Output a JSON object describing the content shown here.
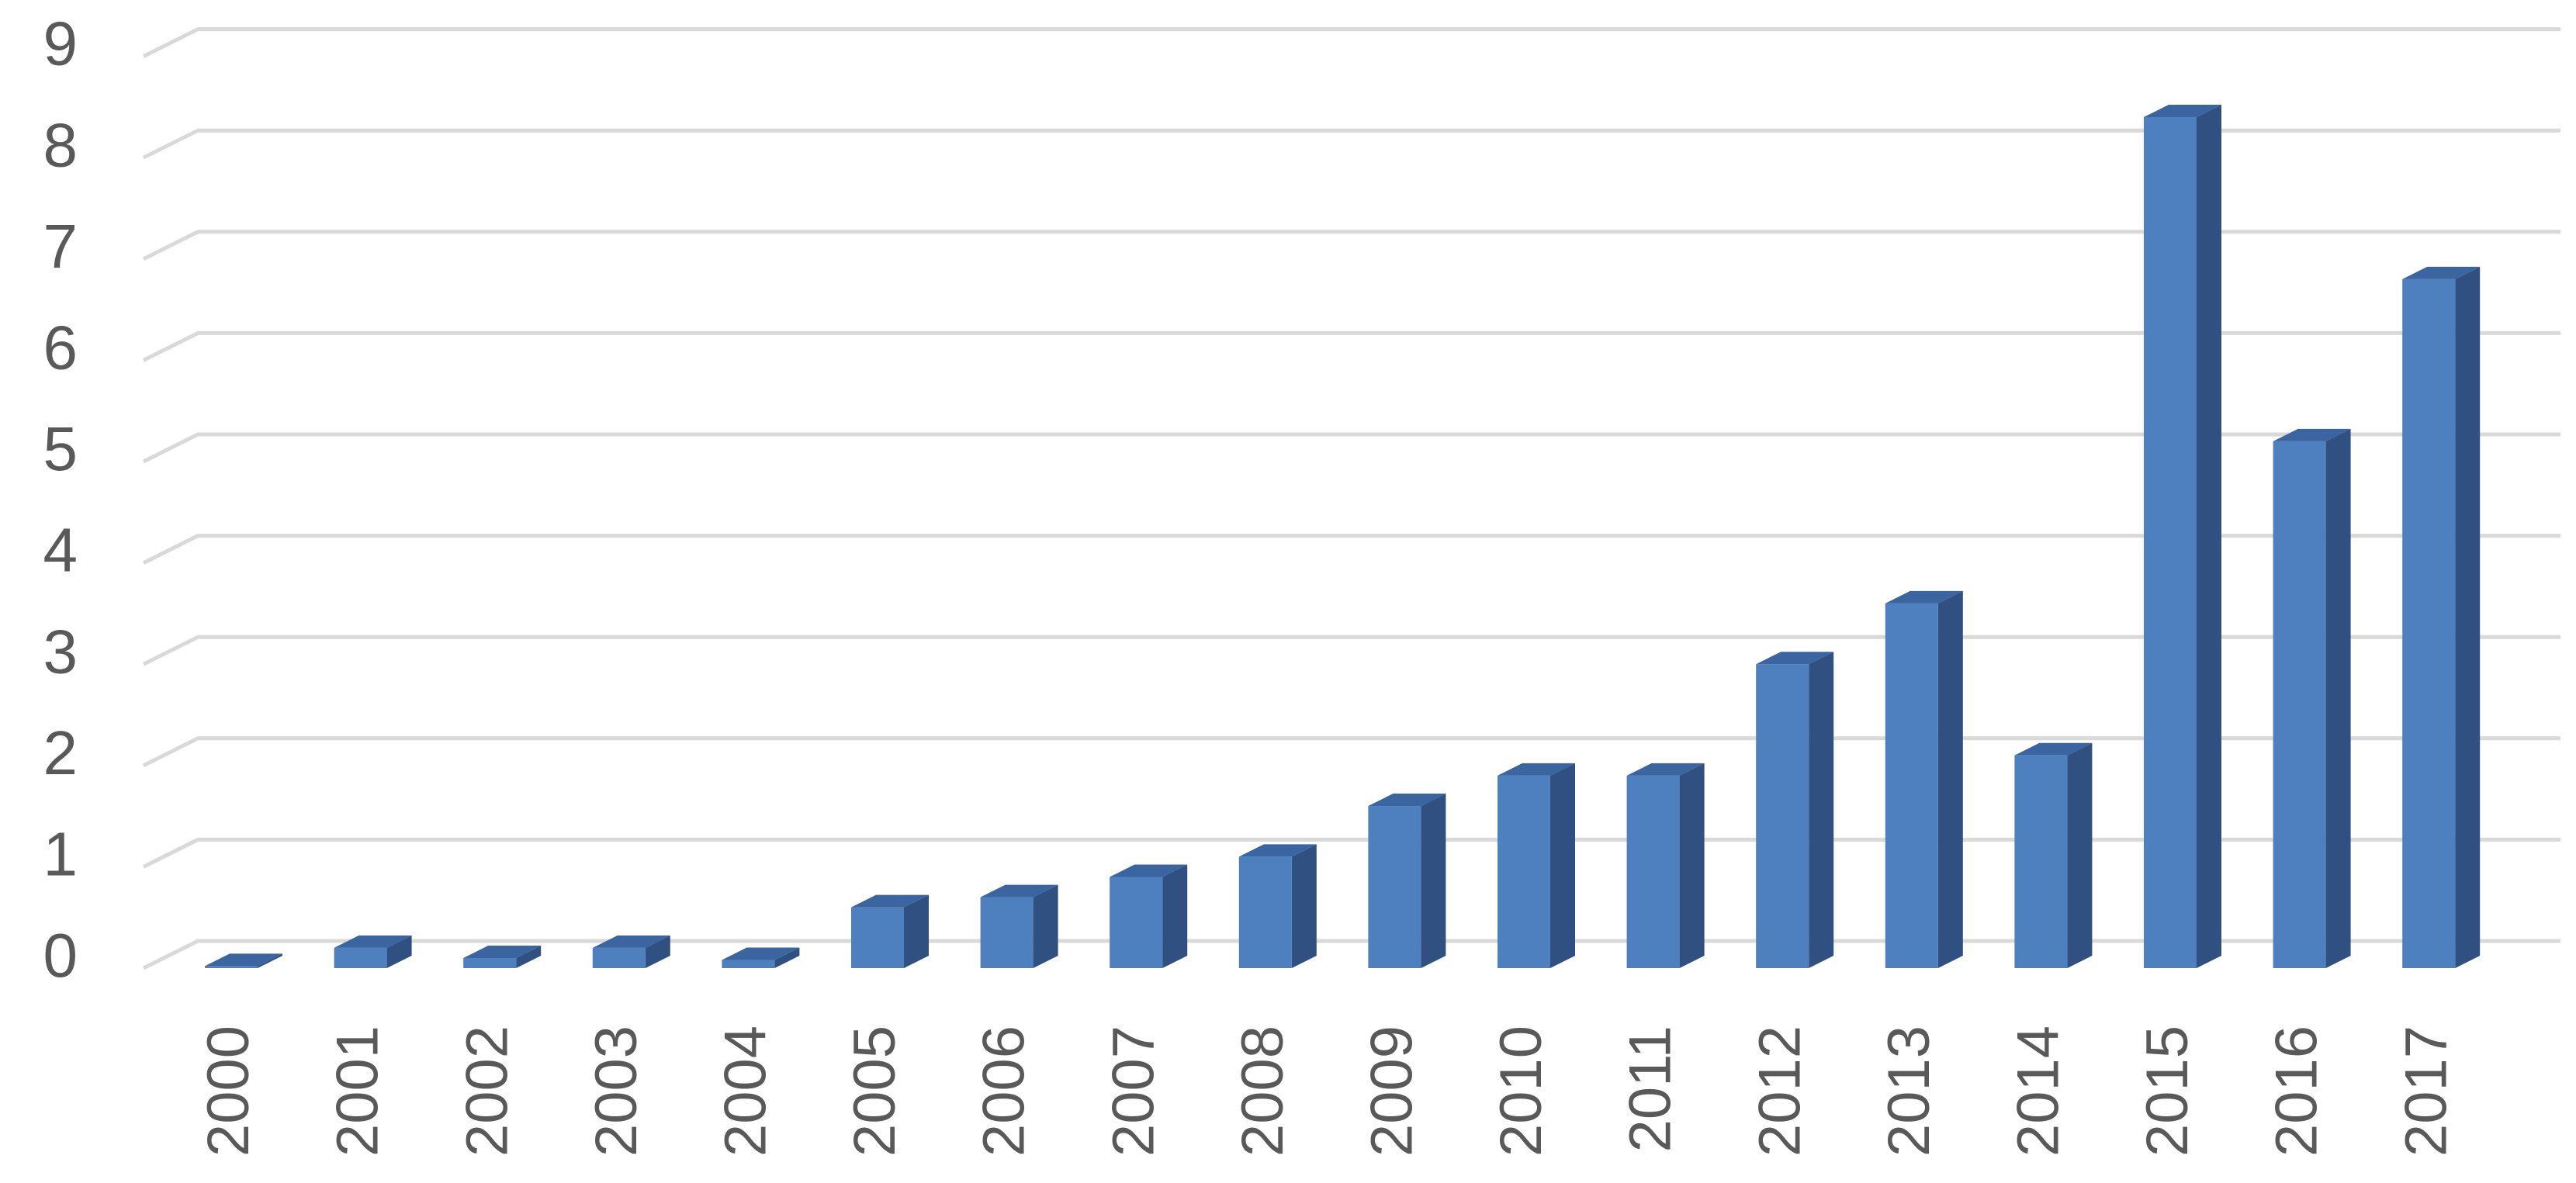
{
  "chart_data": {
    "type": "bar",
    "style": "3d-column",
    "grid": true,
    "legend": "none",
    "title": "",
    "xlabel": "",
    "ylabel": "",
    "ylim": [
      0,
      9
    ],
    "yticks": [
      "0",
      "1",
      "2",
      "3",
      "4",
      "5",
      "6",
      "7",
      "8",
      "9"
    ],
    "categories": [
      "2000",
      "2001",
      "2002",
      "2003",
      "2004",
      "2005",
      "2006",
      "2007",
      "2008",
      "2009",
      "2010",
      "2011",
      "2012",
      "2013",
      "2014",
      "2015",
      "2016",
      "2017"
    ],
    "values": [
      0.02,
      0.2,
      0.1,
      0.2,
      0.08,
      0.6,
      0.7,
      0.9,
      1.1,
      1.6,
      1.9,
      1.9,
      3.0,
      3.6,
      2.1,
      8.4,
      5.2,
      6.8
    ],
    "colors": {
      "front": "#4e7fbf",
      "side": "#2f5080",
      "top": "#3a65a0",
      "grid": "#d9d9d9",
      "text": "#595959"
    }
  }
}
